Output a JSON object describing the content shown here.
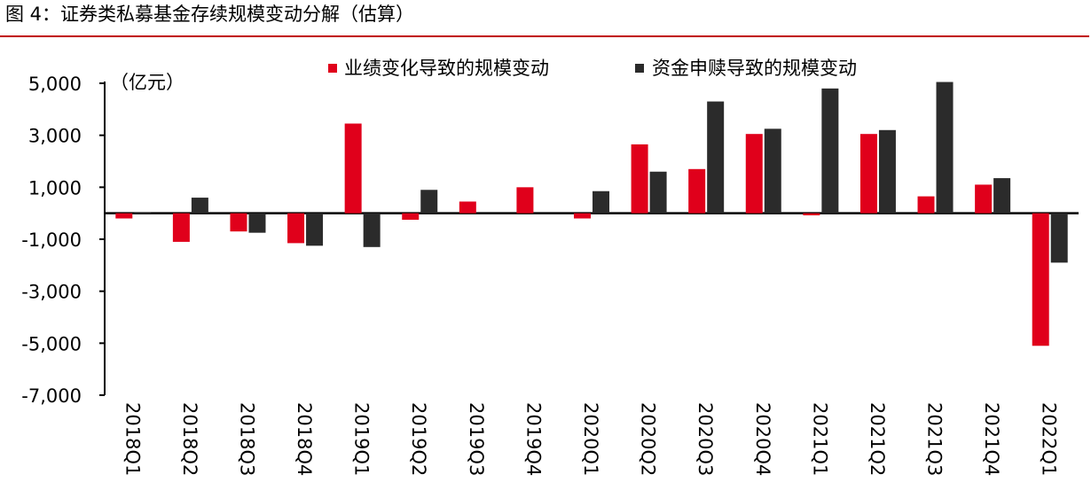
{
  "figure_title": "图 4：证券类私募基金存续规模变动分解（估算）",
  "colors": {
    "accent": "#c00000",
    "series_performance": "#e0001b",
    "series_flow": "#2b2b2b"
  },
  "chart_data": {
    "type": "bar",
    "title": "",
    "unit_label": "（亿元）",
    "categories": [
      "2018Q1",
      "2018Q2",
      "2018Q3",
      "2018Q4",
      "2019Q1",
      "2019Q2",
      "2019Q3",
      "2019Q4",
      "2020Q1",
      "2020Q2",
      "2020Q3",
      "2020Q4",
      "2021Q1",
      "2021Q2",
      "2021Q3",
      "2021Q4",
      "2022Q1"
    ],
    "series": [
      {
        "name": "业绩变化导致的规模变动",
        "color": "#e0001b",
        "values": [
          -200,
          -1100,
          -700,
          -1150,
          3450,
          -250,
          450,
          1000,
          -200,
          2650,
          1700,
          3050,
          -80,
          3050,
          650,
          1100,
          -5100
        ]
      },
      {
        "name": "资金申赎导致的规模变动",
        "color": "#2b2b2b",
        "values": [
          30,
          600,
          -750,
          -1250,
          -1300,
          900,
          0,
          0,
          850,
          1600,
          4300,
          3250,
          4800,
          3200,
          5050,
          1350,
          -1900
        ]
      }
    ],
    "yticks": [
      "5,000",
      "3,000",
      "1,000",
      "-1,000",
      "-3,000",
      "-5,000",
      "-7,000"
    ],
    "ylim": [
      -7000,
      5000
    ],
    "legend": "top-center",
    "grid": false
  }
}
